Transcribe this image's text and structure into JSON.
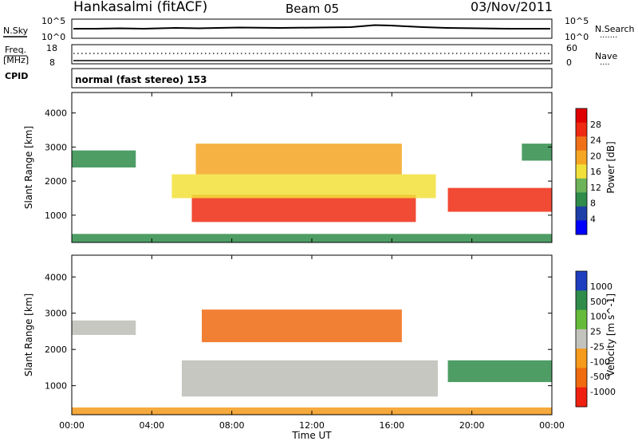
{
  "header": {
    "station": "Hankasalmi (fitACF)",
    "beam": "Beam 05",
    "date": "03/Nov/2011"
  },
  "panels": {
    "nsky": {
      "left_label": "N.Sky",
      "left_ticks": [
        "10^5",
        "10^0"
      ],
      "right_ticks": [
        "10^5",
        "10^0"
      ],
      "right_label": "N.Search",
      "right_key": "·······"
    },
    "freq": {
      "left_label_1": "Freq.",
      "left_label_2": "[MHz]",
      "left_ticks": [
        "18",
        "8"
      ],
      "right_ticks": [
        "60",
        "0"
      ],
      "right_label": "Nave",
      "right_key": "····"
    },
    "cpid": {
      "label": "CPID",
      "mode": "normal (fast stereo) 153"
    }
  },
  "colors": {
    "power_scale": [
      "#0000ff",
      "#1e3fa8",
      "#2f8c4a",
      "#6db35a",
      "#f2e03a",
      "#f5a623",
      "#f07018",
      "#ee2a12",
      "#e00000"
    ],
    "velocity_scale": [
      "#1f3fc0",
      "#2f8c4a",
      "#66bb3a",
      "#c3c3bd",
      "#f59a1a",
      "#f06a10",
      "#f02010"
    ],
    "ground_scatter": "#bdbdb7"
  },
  "chart_data": [
    {
      "type": "heatmap",
      "name": "power",
      "ylabel": "Slant Range [km]",
      "yticks": [
        "1000",
        "2000",
        "3000",
        "4000"
      ],
      "ylim": [
        200,
        4600
      ],
      "xlim": [
        0,
        24
      ],
      "xticks": [
        "00:00",
        "04:00",
        "08:00",
        "12:00",
        "16:00",
        "20:00",
        "00:00"
      ],
      "colorbar_title": "Power [dB]",
      "colorbar_ticks": [
        "4",
        "8",
        "12",
        "16",
        "20",
        "24",
        "28"
      ],
      "regions": [
        {
          "t0": 6.0,
          "t1": 17.2,
          "r0": 800,
          "r1": 1600,
          "level": 28
        },
        {
          "t0": 5.0,
          "t1": 18.2,
          "r0": 1500,
          "r1": 2200,
          "level": 14
        },
        {
          "t0": 6.2,
          "t1": 16.5,
          "r0": 2200,
          "r1": 3100,
          "level": 18
        },
        {
          "t0": 0.0,
          "t1": 3.2,
          "r0": 2400,
          "r1": 2900,
          "level": 9
        },
        {
          "t0": 18.8,
          "t1": 24.0,
          "r0": 1100,
          "r1": 1800,
          "level": 28
        },
        {
          "t0": 22.5,
          "t1": 24.0,
          "r0": 2600,
          "r1": 3100,
          "level": 8
        },
        {
          "t0": 0.0,
          "t1": 24.0,
          "r0": 200,
          "r1": 450,
          "level": 6
        }
      ]
    },
    {
      "type": "heatmap",
      "name": "velocity",
      "ylabel": "Slant Range [km]",
      "yticks": [
        "1000",
        "2000",
        "3000",
        "4000"
      ],
      "ylim": [
        200,
        4600
      ],
      "xlim": [
        0,
        24
      ],
      "xticks": [
        "00:00",
        "04:00",
        "08:00",
        "12:00",
        "16:00",
        "20:00",
        "00:00"
      ],
      "xlabel": "Time UT",
      "colorbar_title": "Velocity [m s^-1]",
      "colorbar_ticks": [
        "1000",
        "500",
        "100",
        "25",
        "-25",
        "-100",
        "-500",
        "-1000"
      ],
      "regions": [
        {
          "t0": 5.5,
          "t1": 18.3,
          "r0": 700,
          "r1": 1700,
          "level": 0
        },
        {
          "t0": 0.0,
          "t1": 3.2,
          "r0": 2400,
          "r1": 2800,
          "level": 0
        },
        {
          "t0": 6.5,
          "t1": 16.5,
          "r0": 2200,
          "r1": 3100,
          "level": -300
        },
        {
          "t0": 18.8,
          "t1": 24.0,
          "r0": 1100,
          "r1": 1700,
          "level": 400
        },
        {
          "t0": 0.0,
          "t1": 24.0,
          "r0": 200,
          "r1": 400,
          "level": -80
        }
      ]
    }
  ]
}
